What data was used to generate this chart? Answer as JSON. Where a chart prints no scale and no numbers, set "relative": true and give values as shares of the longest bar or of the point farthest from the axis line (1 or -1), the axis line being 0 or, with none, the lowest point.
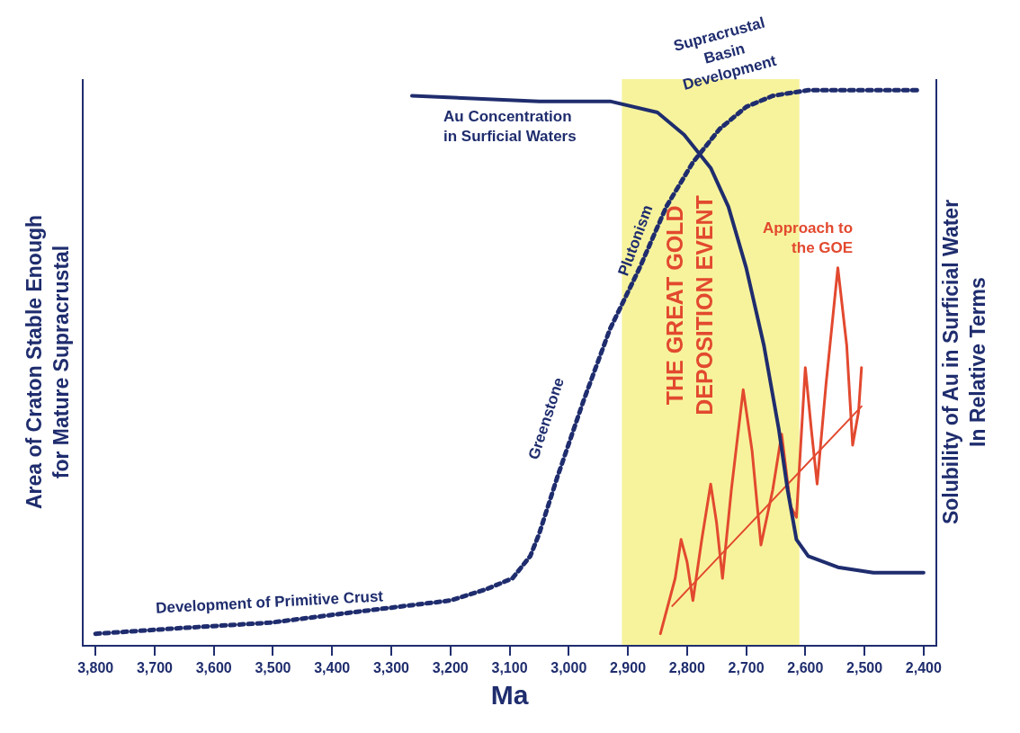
{
  "chart_data": {
    "type": "line",
    "relative": true,
    "xlabel": "Ma",
    "ylabel": "Area of Craton Stable Enough\nfor Mature Supracrustal",
    "y2label": "Solubility of Au in Surficial Water\nIn Relative Terms",
    "xlim": [
      3820,
      2380
    ],
    "xticks": [
      {
        "value": 3800,
        "label": "3,800"
      },
      {
        "value": 3700,
        "label": "3,700"
      },
      {
        "value": 3600,
        "label": "3,600"
      },
      {
        "value": 3500,
        "label": "3,500"
      },
      {
        "value": 3400,
        "label": "3,400"
      },
      {
        "value": 3300,
        "label": "3,300"
      },
      {
        "value": 3200,
        "label": "3,200"
      },
      {
        "value": 3100,
        "label": "3,100"
      },
      {
        "value": 3000,
        "label": "3,000"
      },
      {
        "value": 2900,
        "label": "2,900"
      },
      {
        "value": 2800,
        "label": "2,800"
      },
      {
        "value": 2700,
        "label": "2,700"
      },
      {
        "value": 2600,
        "label": "2,600"
      },
      {
        "value": 2500,
        "label": "2,500"
      },
      {
        "value": 2400,
        "label": "2,400"
      }
    ],
    "tick_labels": "x",
    "marker": "none",
    "bands": [
      {
        "axis": "x",
        "from": 2910,
        "to": 2610,
        "color": "#f7f39c",
        "label": "THE GREAT GOLD\nDEPOSITION EVENT"
      }
    ],
    "series": [
      {
        "color": "#1f2d6e",
        "line_style": "dotted",
        "x": [
          3800,
          3660,
          3505,
          3355,
          3200,
          3140,
          3095,
          3065,
          3050,
          3020,
          2975,
          2930,
          2880,
          2835,
          2790,
          2745,
          2700,
          2655,
          2595,
          2405
        ],
        "values": [
          0.02,
          0.03,
          0.04,
          0.06,
          0.08,
          0.1,
          0.12,
          0.16,
          0.2,
          0.3,
          0.44,
          0.57,
          0.68,
          0.79,
          0.87,
          0.93,
          0.97,
          0.99,
          1,
          1
        ]
      },
      {
        "color": "#1f2d6e",
        "line_style": "solid",
        "axis": "y2",
        "x": [
          3265,
          3050,
          2930,
          2850,
          2805,
          2760,
          2730,
          2700,
          2670,
          2645,
          2630,
          2615,
          2595,
          2545,
          2485,
          2400
        ],
        "values": [
          0.99,
          0.98,
          0.98,
          0.96,
          0.92,
          0.86,
          0.79,
          0.68,
          0.54,
          0.39,
          0.28,
          0.19,
          0.16,
          0.14,
          0.13,
          0.13
        ]
      },
      {
        "color": "#e2492f",
        "line_style": "solid",
        "x": [
          2845,
          2820,
          2810,
          2800,
          2790,
          2775,
          2760,
          2750,
          2740,
          2725,
          2705,
          2690,
          2675,
          2655,
          2640,
          2625,
          2615,
          2600,
          2590,
          2580,
          2565,
          2545,
          2530,
          2520,
          2510,
          2505
        ],
        "values": [
          0.02,
          0.12,
          0.19,
          0.15,
          0.08,
          0.19,
          0.29,
          0.22,
          0.12,
          0.28,
          0.46,
          0.35,
          0.18,
          0.28,
          0.38,
          0.25,
          0.23,
          0.5,
          0.39,
          0.29,
          0.47,
          0.68,
          0.54,
          0.36,
          0.42,
          0.5
        ]
      },
      {
        "color": "#e2492f",
        "line_style": "solid",
        "x": [
          2825,
          2505
        ],
        "values": [
          0.07,
          0.43
        ]
      }
    ],
    "annotations": [
      "Development of Primitive Crust",
      "Greenstone",
      "Plutonism",
      "Supracrustal\nBasin\nDevelopment",
      "Au Concentration\nin Surficial Waters",
      "Approach to\nthe GOE"
    ]
  }
}
